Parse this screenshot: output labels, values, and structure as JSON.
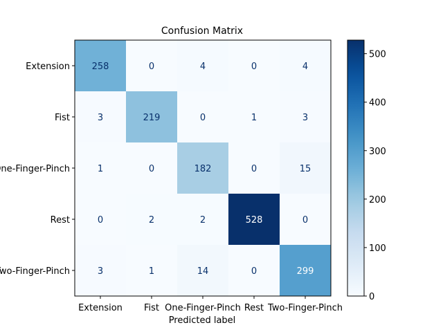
{
  "chart_data": {
    "type": "heatmap",
    "title": "Confusion Matrix",
    "xlabel": "Predicted label",
    "ylabel": "",
    "row_labels": [
      "Extension",
      "Fist",
      "One-Finger-Pinch",
      "Rest",
      "Two-Finger-Pinch"
    ],
    "col_labels": [
      "Extension",
      "Fist",
      "One-Finger-Pinch",
      "Rest",
      "Two-Finger-Pinch"
    ],
    "values": [
      [
        258,
        0,
        4,
        0,
        4
      ],
      [
        3,
        219,
        0,
        1,
        3
      ],
      [
        1,
        0,
        182,
        0,
        15
      ],
      [
        0,
        2,
        2,
        528,
        0
      ],
      [
        3,
        1,
        14,
        0,
        299
      ]
    ],
    "colormap": "Blues",
    "color_range": [
      0,
      528
    ],
    "colorbar_ticks": [
      0,
      100,
      200,
      300,
      400,
      500
    ],
    "colorbar_tick_labels": [
      "0",
      "100",
      "200",
      "300",
      "400",
      "500"
    ],
    "text_color_light": "#ffffff",
    "text_color_dark": "#08306b"
  }
}
